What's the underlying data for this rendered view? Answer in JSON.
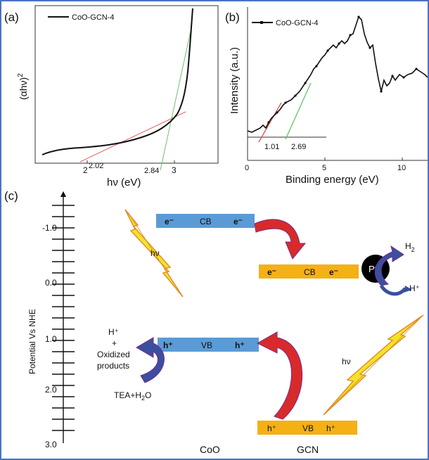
{
  "panels": {
    "a": {
      "label": "(a)",
      "legend": "CoO-GCN-4",
      "ylabel_main": "(αhν)",
      "ylabel_sup": "2",
      "xlabel": "hν (eV)",
      "ticks": [
        "2",
        "3"
      ],
      "annotations": [
        "2.02",
        "2.84"
      ]
    },
    "b": {
      "label": "(b)",
      "legend": "CoO-GCN-4",
      "ylabel": "Intensity (a.u.)",
      "xlabel": "Binding energy (eV)",
      "ticks": [
        "0",
        "5",
        "10"
      ],
      "annotations": [
        "1.01",
        "2.69"
      ]
    },
    "c": {
      "label": "(c)",
      "axis_label": "Potential Vs NHE",
      "ticks": [
        "-1.0",
        "0.0",
        "1.0",
        "2.0",
        "3.0"
      ],
      "coo_cb": {
        "left": "e⁻",
        "mid": "CB",
        "right": "e⁻"
      },
      "coo_vb": {
        "left": "h⁺",
        "mid": "VB",
        "right": "h⁺"
      },
      "gcn_cb": {
        "left": "e⁻",
        "mid": "CB",
        "right": "e⁻"
      },
      "gcn_vb": {
        "left": "h⁺",
        "mid": "VB",
        "right": "h⁺"
      },
      "pt": "Pt",
      "h2_main": "H",
      "h2_sub": "2",
      "hplus_right": "H⁺",
      "hv1": "hν",
      "hv2": "hν",
      "left_products": [
        "H⁺",
        "+",
        "Oxidized",
        "products"
      ],
      "tea_main": "TEA+H",
      "tea_sub": "2",
      "tea_end": "O",
      "bottom_labels": [
        "CoO",
        "GCN"
      ]
    }
  },
  "colors": {
    "frame": "#4a72c4",
    "band_blue": "#5b9bd5",
    "band_orange": "#f5b015",
    "arrow_red": "#d82a2a",
    "arrow_blue": "#3a4fa0",
    "lightning": "#f3e327",
    "tangent_red": "#e06060",
    "tangent_green": "#6cc46c"
  },
  "chart_data": [
    {
      "type": "line",
      "series": [
        {
          "name": "CoO-GCN-4",
          "x": [
            1.4,
            1.6,
            1.8,
            2.0,
            2.2,
            2.4,
            2.6,
            2.75,
            2.85,
            2.95,
            3.0,
            3.05,
            3.1,
            3.15,
            3.2
          ],
          "y": [
            0.02,
            0.06,
            0.09,
            0.1,
            0.12,
            0.16,
            0.22,
            0.3,
            0.38,
            0.52,
            0.62,
            0.74,
            0.86,
            0.96,
            1.05
          ]
        }
      ],
      "xlim": [
        1.2,
        3.5
      ],
      "tangents_x_intercepts": [
        2.02,
        2.84
      ]
    },
    {
      "type": "scatter",
      "series": [
        {
          "name": "CoO-GCN-4",
          "x": [
            0,
            0.5,
            1.0,
            1.5,
            2.0,
            2.5,
            3.0,
            3.5,
            4.0,
            4.5,
            5.0,
            5.5,
            6.0,
            6.5,
            7.0,
            7.5,
            8.0,
            8.5,
            9.0,
            9.5,
            10.0,
            10.5,
            11.0,
            11.5
          ],
          "y": [
            0.1,
            0.12,
            0.15,
            0.2,
            0.28,
            0.38,
            0.44,
            0.55,
            0.68,
            0.72,
            0.74,
            0.78,
            0.82,
            0.92,
            1.0,
            0.9,
            0.6,
            0.55,
            0.45,
            0.58,
            0.62,
            0.66,
            0.7,
            0.62
          ]
        }
      ],
      "xlim": [
        0,
        12
      ],
      "tangents_x_intercepts": [
        1.01,
        2.69
      ]
    }
  ]
}
